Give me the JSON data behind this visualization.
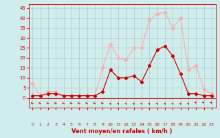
{
  "hours": [
    0,
    1,
    2,
    3,
    4,
    5,
    6,
    7,
    8,
    9,
    10,
    11,
    12,
    13,
    14,
    15,
    16,
    17,
    18,
    19,
    20,
    21,
    22,
    23
  ],
  "wind_avg": [
    1,
    1,
    2,
    2,
    1,
    1,
    1,
    1,
    1,
    3,
    14,
    10,
    10,
    11,
    8,
    16,
    24,
    26,
    21,
    12,
    2,
    2,
    1,
    1
  ],
  "wind_gust": [
    7,
    1,
    3,
    3,
    1,
    1,
    1,
    1,
    1,
    15,
    27,
    20,
    19,
    25,
    25,
    39,
    42,
    43,
    35,
    40,
    14,
    16,
    4,
    2
  ],
  "color_avg": "#cc0000",
  "color_gust": "#ffaaaa",
  "bg_color": "#d0ecec",
  "grid_color": "#aacaca",
  "xlabel": "Vent moyen/en rafales ( km/h )",
  "ylabel_ticks": [
    0,
    5,
    10,
    15,
    20,
    25,
    30,
    35,
    40,
    45
  ],
  "tick_color": "#cc0000",
  "ylim": [
    -5,
    47
  ],
  "xlim": [
    -0.5,
    23.5
  ],
  "arrow_flat_hours": [
    0,
    1,
    2,
    3,
    4,
    5,
    6,
    7,
    8,
    9
  ],
  "arrow_ne_hours": [
    10,
    11,
    12,
    13,
    14,
    15,
    16,
    17,
    18,
    19,
    20
  ],
  "arrow_sw_hours": [
    21,
    22,
    23
  ]
}
